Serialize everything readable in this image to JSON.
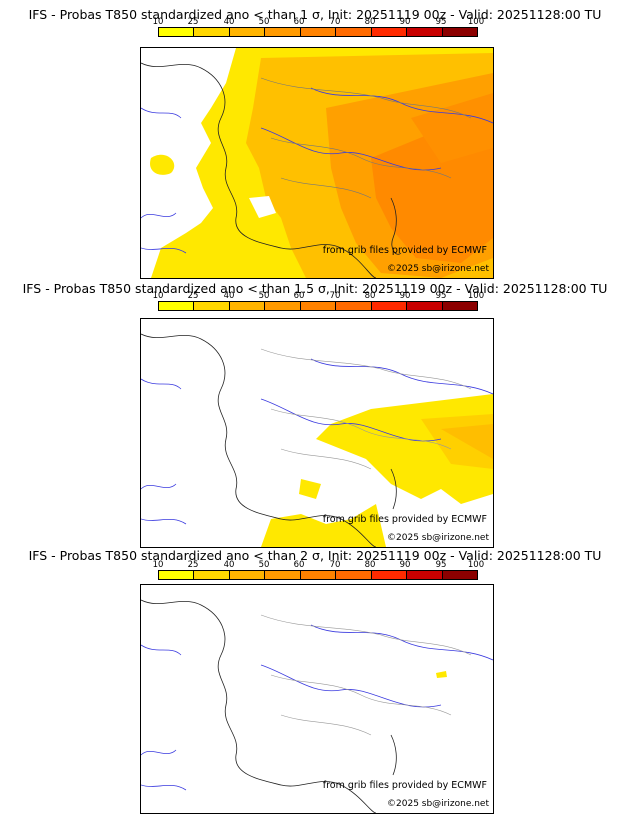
{
  "panels": [
    {
      "title": "IFS - Probas T850  standardized ano < than 1 σ, Init: 20251119 00z - Valid: 20251128:00 TU"
    },
    {
      "title": "IFS - Probas T850  standardized ano < than 1.5 σ, Init: 20251119 00z - Valid: 20251128:00 TU"
    },
    {
      "title": "IFS - Probas T850  standardized ano < than 2 σ, Init: 20251119 00z - Valid: 20251128:00 TU"
    }
  ],
  "colorbar": {
    "ticks": [
      "10",
      "25",
      "40",
      "50",
      "60",
      "70",
      "80",
      "90",
      "95",
      "100"
    ],
    "colors": [
      "#ffff00",
      "#ffd700",
      "#ffb400",
      "#ff9a00",
      "#ff8200",
      "#ff6a00",
      "#ff2a00",
      "#c80000",
      "#8c0000"
    ]
  },
  "credits": {
    "source": "from grib files provided by ECMWF",
    "copyright": "©2025 sb@irizone.net"
  }
}
